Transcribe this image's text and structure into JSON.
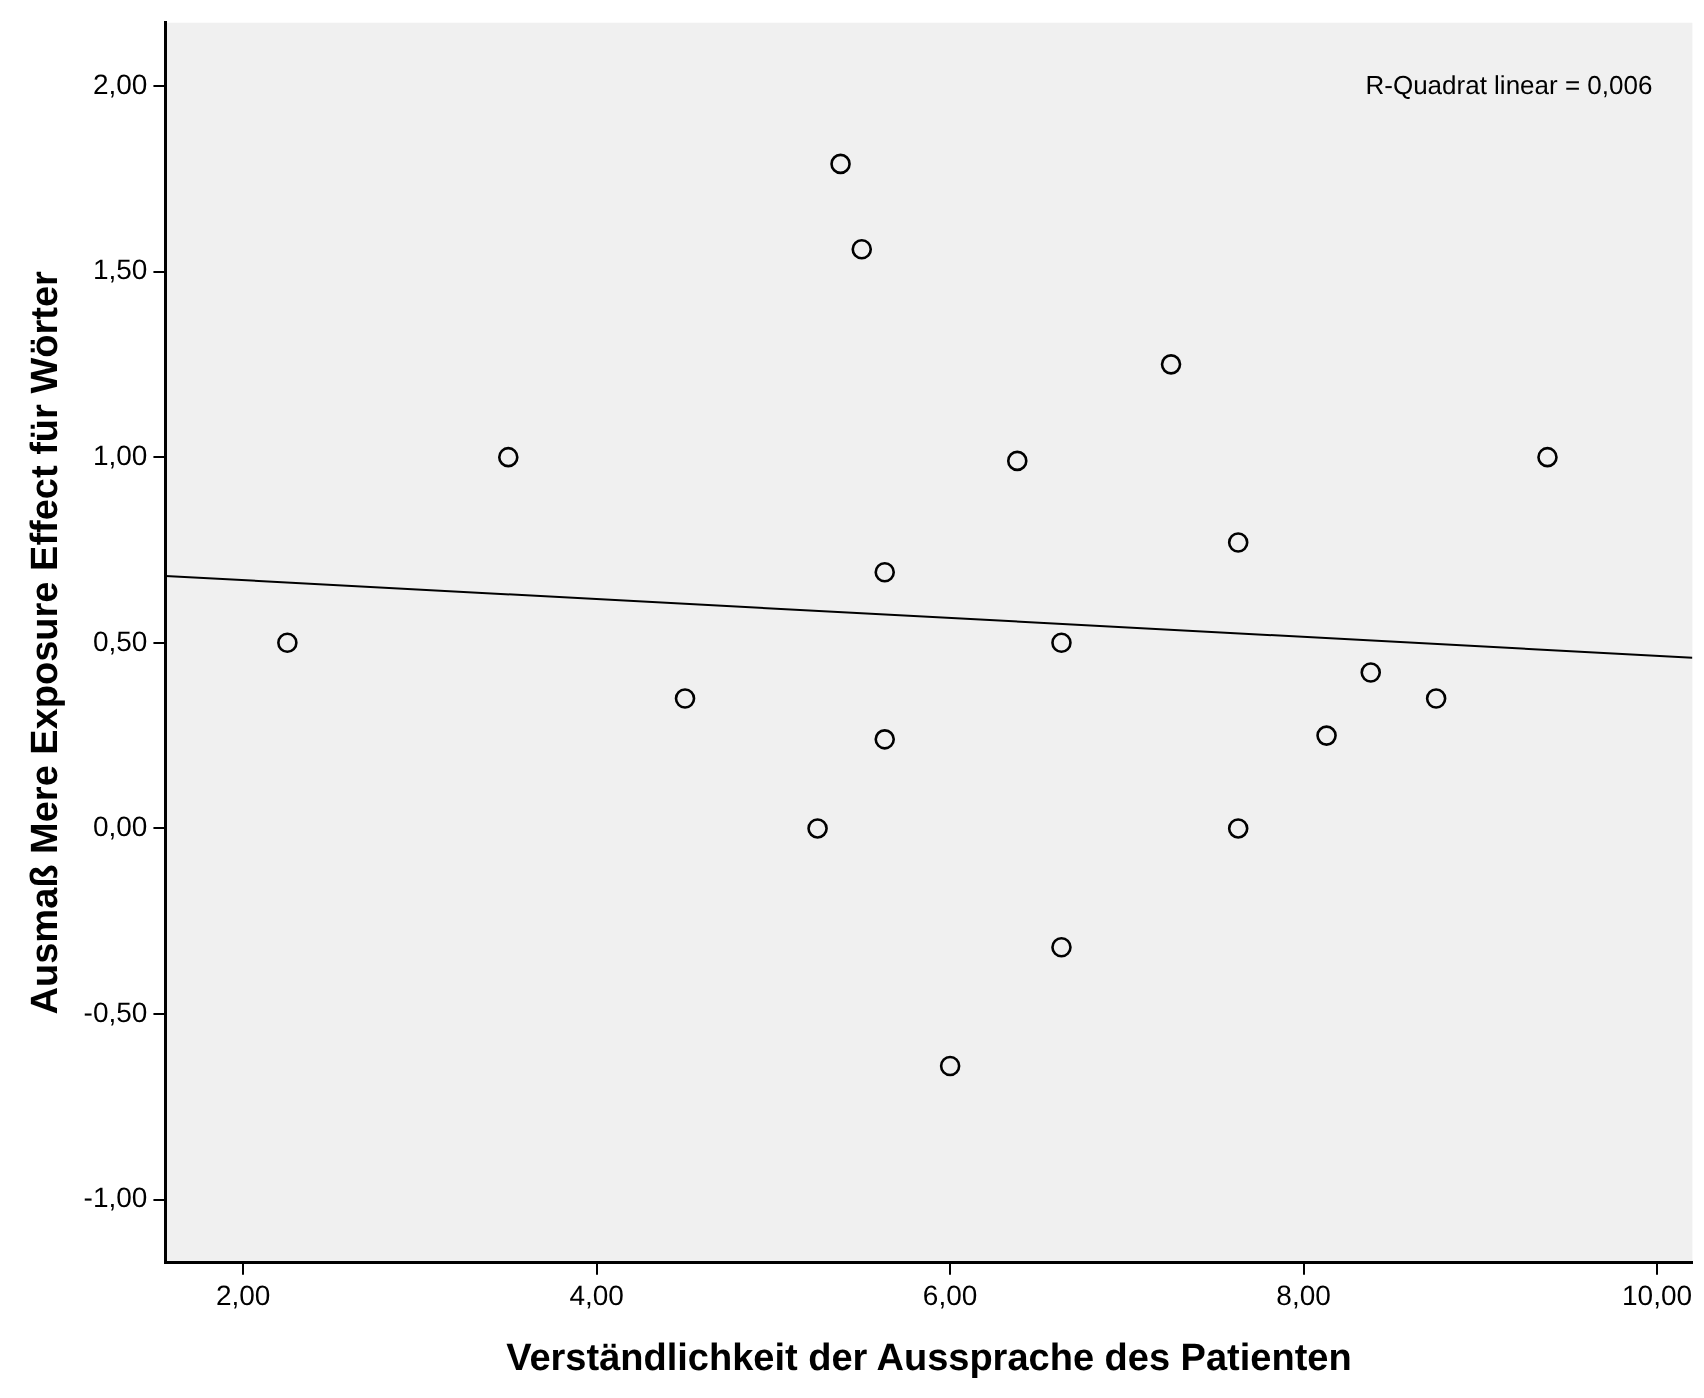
{
  "chart_data": {
    "type": "scatter",
    "xlabel": "Verständlichkeit der Aussprache des Patienten",
    "ylabel": "Ausmaß Mere Exposure Effect für Wörter",
    "annotations": [
      "R-Quadrat linear = 0,006"
    ],
    "xlim": [
      1.56,
      10.2
    ],
    "ylim": [
      -1.17,
      2.17
    ],
    "xticks": [
      {
        "value": 2,
        "label": "2,00"
      },
      {
        "value": 4,
        "label": "4,00"
      },
      {
        "value": 6,
        "label": "6,00"
      },
      {
        "value": 8,
        "label": "8,00"
      },
      {
        "value": 10,
        "label": "10,00"
      }
    ],
    "yticks": [
      {
        "value": -1,
        "label": "-1,00"
      },
      {
        "value": -0.5,
        "label": "-0,50"
      },
      {
        "value": 0,
        "label": "0,00"
      },
      {
        "value": 0.5,
        "label": "0,50"
      },
      {
        "value": 1,
        "label": "1,00"
      },
      {
        "value": 1.5,
        "label": "1,50"
      },
      {
        "value": 2,
        "label": "2,00"
      }
    ],
    "grid": false,
    "legend": false,
    "series": [
      {
        "type": "scatter",
        "marker": "circle",
        "color": "#000000",
        "x": [
          2.25,
          3.5,
          4.5,
          5.25,
          5.38,
          5.5,
          5.63,
          5.63,
          6.0,
          6.38,
          6.63,
          6.63,
          7.25,
          7.63,
          7.63,
          8.13,
          8.38,
          8.75,
          9.38
        ],
        "values": [
          0.5,
          1.0,
          0.35,
          0.0,
          1.79,
          1.56,
          0.69,
          0.24,
          -0.64,
          0.99,
          0.5,
          -0.32,
          1.25,
          0.77,
          0.0,
          0.25,
          0.42,
          0.35,
          1.0
        ]
      },
      {
        "type": "line",
        "marker": "none",
        "color": "#000000",
        "line_style": "solid",
        "x": [
          1.56,
          10.2
        ],
        "values": [
          0.68,
          0.46
        ]
      }
    ]
  }
}
